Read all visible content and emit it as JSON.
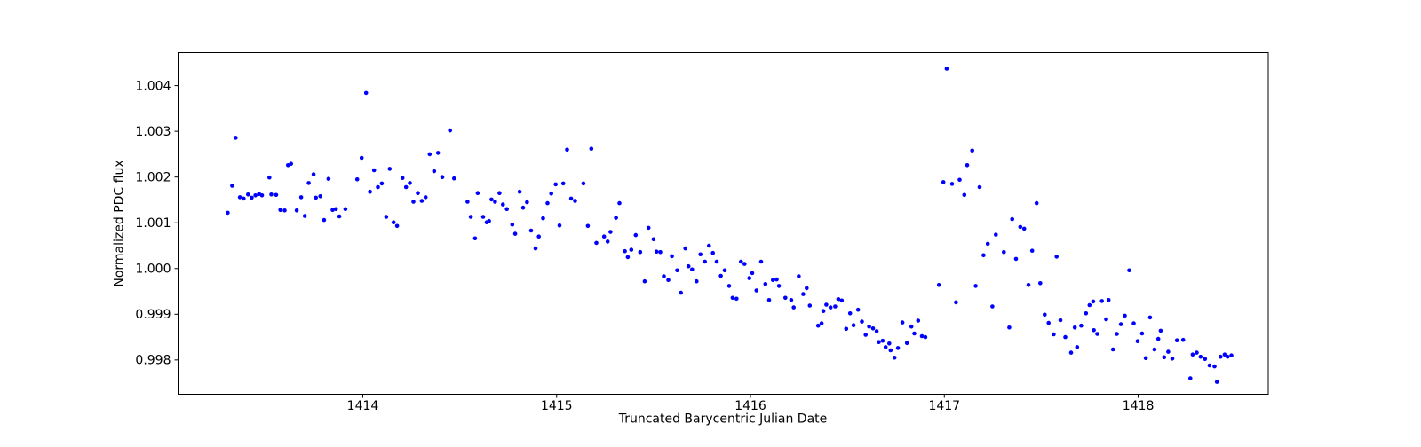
{
  "figure": {
    "background": "#ffffff"
  },
  "chart_data": {
    "type": "scatter",
    "title": "",
    "xlabel": "Truncated Barycentric Julian Date",
    "ylabel": "Normalized PDC flux",
    "xlim": [
      1413.047,
      1418.671
    ],
    "ylim": [
      0.99725,
      1.00472
    ],
    "grid": false,
    "legend": null,
    "marker_color": "#0000ff",
    "marker_radius_px": 2.3,
    "axis_color": "#000000",
    "x_ticks": [
      {
        "v": 1414,
        "label": "1414"
      },
      {
        "v": 1415,
        "label": "1415"
      },
      {
        "v": 1416,
        "label": "1416"
      },
      {
        "v": 1417,
        "label": "1417"
      },
      {
        "v": 1418,
        "label": "1418"
      }
    ],
    "y_ticks": [
      {
        "v": 0.998,
        "label": "0.998"
      },
      {
        "v": 0.999,
        "label": "0.999"
      },
      {
        "v": 1.0,
        "label": "1.000"
      },
      {
        "v": 1.001,
        "label": "1.001"
      },
      {
        "v": 1.002,
        "label": "1.002"
      },
      {
        "v": 1.003,
        "label": "1.003"
      },
      {
        "v": 1.004,
        "label": "1.004"
      }
    ],
    "series": [
      {
        "name": "Normalized PDC flux",
        "points": [
          [
            1413.303,
            1.00122
          ],
          [
            1413.326,
            1.00181
          ],
          [
            1413.344,
            1.00286
          ],
          [
            1413.366,
            1.00156
          ],
          [
            1413.385,
            1.00153
          ],
          [
            1413.408,
            1.00162
          ],
          [
            1413.427,
            1.00155
          ],
          [
            1413.446,
            1.0016
          ],
          [
            1413.465,
            1.00163
          ],
          [
            1413.48,
            1.0016
          ],
          [
            1413.518,
            1.00199
          ],
          [
            1413.528,
            1.00162
          ],
          [
            1413.553,
            1.00161
          ],
          [
            1413.575,
            1.00128
          ],
          [
            1413.597,
            1.00127
          ],
          [
            1413.614,
            1.00226
          ],
          [
            1413.63,
            1.00229
          ],
          [
            1413.659,
            1.00127
          ],
          [
            1413.682,
            1.00156
          ],
          [
            1413.701,
            1.00115
          ],
          [
            1413.721,
            1.00187
          ],
          [
            1413.746,
            1.00206
          ],
          [
            1413.758,
            1.00155
          ],
          [
            1413.781,
            1.00158
          ],
          [
            1413.8,
            1.00106
          ],
          [
            1413.823,
            1.00196
          ],
          [
            1413.844,
            1.00128
          ],
          [
            1413.861,
            1.0013
          ],
          [
            1413.879,
            1.00114
          ],
          [
            1413.91,
            1.0013
          ],
          [
            1413.971,
            1.00195
          ],
          [
            1413.994,
            1.00242
          ],
          [
            1414.017,
            1.00384
          ],
          [
            1414.037,
            1.00168
          ],
          [
            1414.058,
            1.00215
          ],
          [
            1414.078,
            1.00178
          ],
          [
            1414.098,
            1.00186
          ],
          [
            1414.121,
            1.00113
          ],
          [
            1414.139,
            1.00218
          ],
          [
            1414.159,
            1.00101
          ],
          [
            1414.177,
            1.00093
          ],
          [
            1414.205,
            1.00198
          ],
          [
            1414.223,
            1.00178
          ],
          [
            1414.243,
            1.00187
          ],
          [
            1414.261,
            1.00146
          ],
          [
            1414.284,
            1.00165
          ],
          [
            1414.304,
            1.00148
          ],
          [
            1414.324,
            1.00156
          ],
          [
            1414.345,
            1.0025
          ],
          [
            1414.368,
            1.00213
          ],
          [
            1414.388,
            1.00253
          ],
          [
            1414.41,
            1.002
          ],
          [
            1414.45,
            1.00302
          ],
          [
            1414.471,
            1.00197
          ],
          [
            1414.54,
            1.00146
          ],
          [
            1414.557,
            1.00113
          ],
          [
            1414.579,
            1.00066
          ],
          [
            1414.593,
            1.00165
          ],
          [
            1414.621,
            1.00113
          ],
          [
            1414.639,
            1.00101
          ],
          [
            1414.651,
            1.00104
          ],
          [
            1414.664,
            1.00151
          ],
          [
            1414.682,
            1.00146
          ],
          [
            1414.705,
            1.00165
          ],
          [
            1414.723,
            1.0014
          ],
          [
            1414.743,
            1.0013
          ],
          [
            1414.771,
            1.00096
          ],
          [
            1414.786,
            1.00076
          ],
          [
            1414.809,
            1.00168
          ],
          [
            1414.827,
            1.00133
          ],
          [
            1414.847,
            1.00145
          ],
          [
            1414.868,
            1.00083
          ],
          [
            1414.891,
            1.00044
          ],
          [
            1414.908,
            1.0007
          ],
          [
            1414.93,
            1.0011
          ],
          [
            1414.953,
            1.00143
          ],
          [
            1414.972,
            1.00164
          ],
          [
            1414.995,
            1.00184
          ],
          [
            1415.015,
            1.00094
          ],
          [
            1415.034,
            1.00186
          ],
          [
            1415.054,
            1.0026
          ],
          [
            1415.075,
            1.00153
          ],
          [
            1415.095,
            1.00148
          ],
          [
            1415.138,
            1.00186
          ],
          [
            1415.161,
            1.00093
          ],
          [
            1415.179,
            1.00262
          ],
          [
            1415.205,
            1.00056
          ],
          [
            1415.245,
            1.0007
          ],
          [
            1415.263,
            1.00059
          ],
          [
            1415.278,
            1.0008
          ],
          [
            1415.306,
            1.00111
          ],
          [
            1415.324,
            1.00143
          ],
          [
            1415.352,
            1.00038
          ],
          [
            1415.367,
            1.00025
          ],
          [
            1415.385,
            1.00041
          ],
          [
            1415.408,
            1.00073
          ],
          [
            1415.431,
            1.00036
          ],
          [
            1415.454,
            0.99972
          ],
          [
            1415.474,
            1.00089
          ],
          [
            1415.5,
            1.00064
          ],
          [
            1415.515,
            1.00037
          ],
          [
            1415.535,
            1.00036
          ],
          [
            1415.553,
            0.99983
          ],
          [
            1415.576,
            0.99975
          ],
          [
            1415.595,
            1.00027
          ],
          [
            1415.622,
            0.99996
          ],
          [
            1415.641,
            0.99947
          ],
          [
            1415.664,
            1.00044
          ],
          [
            1415.68,
            1.00005
          ],
          [
            1415.699,
            0.99998
          ],
          [
            1415.722,
            0.99972
          ],
          [
            1415.742,
            1.00031
          ],
          [
            1415.765,
            1.00015
          ],
          [
            1415.786,
            1.0005
          ],
          [
            1415.806,
            1.00034
          ],
          [
            1415.826,
            1.00015
          ],
          [
            1415.847,
            0.99984
          ],
          [
            1415.867,
            0.99996
          ],
          [
            1415.89,
            0.99962
          ],
          [
            1415.908,
            0.99936
          ],
          [
            1415.928,
            0.99934
          ],
          [
            1415.951,
            1.00015
          ],
          [
            1415.969,
            1.0001
          ],
          [
            1415.994,
            0.99979
          ],
          [
            1416.009,
            0.9999
          ],
          [
            1416.031,
            0.99952
          ],
          [
            1416.055,
            1.00015
          ],
          [
            1416.077,
            0.99966
          ],
          [
            1416.096,
            0.99931
          ],
          [
            1416.116,
            0.99975
          ],
          [
            1416.135,
            0.99976
          ],
          [
            1416.147,
            0.99962
          ],
          [
            1416.18,
            0.99936
          ],
          [
            1416.21,
            0.99931
          ],
          [
            1416.223,
            0.99915
          ],
          [
            1416.249,
            0.99983
          ],
          [
            1416.272,
            0.99944
          ],
          [
            1416.29,
            0.99957
          ],
          [
            1416.306,
            0.99919
          ],
          [
            1416.349,
            0.99875
          ],
          [
            1416.367,
            0.9988
          ],
          [
            1416.376,
            0.99907
          ],
          [
            1416.391,
            0.99921
          ],
          [
            1416.413,
            0.99915
          ],
          [
            1416.437,
            0.99917
          ],
          [
            1416.453,
            0.99933
          ],
          [
            1416.471,
            0.9993
          ],
          [
            1416.494,
            0.99868
          ],
          [
            1416.514,
            0.99902
          ],
          [
            1416.532,
            0.99876
          ],
          [
            1416.555,
            0.9991
          ],
          [
            1416.575,
            0.99884
          ],
          [
            1416.594,
            0.99855
          ],
          [
            1416.612,
            0.99873
          ],
          [
            1416.632,
            0.99869
          ],
          [
            1416.651,
            0.99863
          ],
          [
            1416.662,
            0.99839
          ],
          [
            1416.682,
            0.99842
          ],
          [
            1416.697,
            0.99828
          ],
          [
            1416.716,
            0.99836
          ],
          [
            1416.723,
            0.99821
          ],
          [
            1416.743,
            0.99805
          ],
          [
            1416.761,
            0.99826
          ],
          [
            1416.784,
            0.99882
          ],
          [
            1416.807,
            0.99837
          ],
          [
            1416.83,
            0.99873
          ],
          [
            1416.845,
            0.99858
          ],
          [
            1416.865,
            0.99886
          ],
          [
            1416.884,
            0.99852
          ],
          [
            1416.902,
            0.9985
          ],
          [
            1416.972,
            0.99964
          ],
          [
            1416.995,
            1.00189
          ],
          [
            1417.012,
            1.00437
          ],
          [
            1417.04,
            1.00185
          ],
          [
            1417.06,
            0.99926
          ],
          [
            1417.079,
            1.00194
          ],
          [
            1417.103,
            1.00161
          ],
          [
            1417.118,
            1.00226
          ],
          [
            1417.144,
            1.00258
          ],
          [
            1417.162,
            0.99962
          ],
          [
            1417.182,
            1.00178
          ],
          [
            1417.202,
            1.00029
          ],
          [
            1417.224,
            1.00054
          ],
          [
            1417.248,
            0.99917
          ],
          [
            1417.266,
            1.00074
          ],
          [
            1417.307,
            1.00036
          ],
          [
            1417.335,
            0.99871
          ],
          [
            1417.35,
            1.00108
          ],
          [
            1417.37,
            1.00021
          ],
          [
            1417.392,
            1.00091
          ],
          [
            1417.412,
            1.00087
          ],
          [
            1417.434,
            0.99964
          ],
          [
            1417.453,
            1.00039
          ],
          [
            1417.476,
            1.00143
          ],
          [
            1417.495,
            0.99968
          ],
          [
            1417.518,
            0.99899
          ],
          [
            1417.538,
            0.99881
          ],
          [
            1417.564,
            0.99856
          ],
          [
            1417.579,
            1.00026
          ],
          [
            1417.599,
            0.99887
          ],
          [
            1417.624,
            0.9985
          ],
          [
            1417.654,
            0.99816
          ],
          [
            1417.673,
            0.99871
          ],
          [
            1417.685,
            0.99828
          ],
          [
            1417.706,
            0.99875
          ],
          [
            1417.731,
            0.99902
          ],
          [
            1417.749,
            0.9992
          ],
          [
            1417.768,
            0.99928
          ],
          [
            1417.771,
            0.99865
          ],
          [
            1417.789,
            0.99857
          ],
          [
            1417.813,
            0.99929
          ],
          [
            1417.835,
            0.99889
          ],
          [
            1417.847,
            0.99931
          ],
          [
            1417.87,
            0.99823
          ],
          [
            1417.89,
            0.99857
          ],
          [
            1417.911,
            0.99878
          ],
          [
            1417.931,
            0.99897
          ],
          [
            1417.954,
            0.99996
          ],
          [
            1417.977,
            0.9988
          ],
          [
            1417.997,
            0.99841
          ],
          [
            1418.02,
            0.99858
          ],
          [
            1418.039,
            0.99804
          ],
          [
            1418.061,
            0.99893
          ],
          [
            1418.084,
            0.99823
          ],
          [
            1418.104,
            0.99846
          ],
          [
            1418.116,
            0.99864
          ],
          [
            1418.134,
            0.99806
          ],
          [
            1418.155,
            0.99818
          ],
          [
            1418.176,
            0.99803
          ],
          [
            1418.2,
            0.99843
          ],
          [
            1418.232,
            0.99844
          ],
          [
            1418.269,
            0.9976
          ],
          [
            1418.281,
            0.99812
          ],
          [
            1418.302,
            0.99816
          ],
          [
            1418.322,
            0.99807
          ],
          [
            1418.345,
            0.99802
          ],
          [
            1418.368,
            0.99788
          ],
          [
            1418.394,
            0.99786
          ],
          [
            1418.406,
            0.99752
          ],
          [
            1418.425,
            0.99807
          ],
          [
            1418.446,
            0.99812
          ],
          [
            1418.461,
            0.99807
          ],
          [
            1418.481,
            0.9981
          ]
        ]
      }
    ]
  }
}
